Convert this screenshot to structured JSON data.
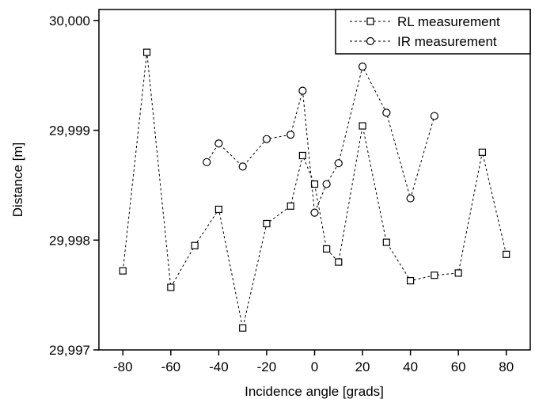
{
  "chart_data": {
    "type": "line",
    "xlabel": "Incidence angle [grads]",
    "ylabel": "Distance [m]",
    "xlim": [
      -90,
      90
    ],
    "ylim": [
      29.997,
      30.0001
    ],
    "x_ticks": [
      -80,
      -60,
      -40,
      -20,
      0,
      20,
      40,
      60,
      80
    ],
    "x_tick_labels": [
      "-80",
      "-60",
      "-40",
      "-20",
      "0",
      "20",
      "40",
      "60",
      "80"
    ],
    "y_ticks": [
      29.997,
      29.998,
      29.999,
      30.0
    ],
    "y_tick_labels": [
      "29,997",
      "29,998",
      "29,999",
      "30,000"
    ],
    "grid": false,
    "legend_position": "top-right",
    "series": [
      {
        "name": "RL measurement",
        "marker": "square",
        "line_style": "dashed",
        "color": "#000000",
        "x": [
          -80,
          -70,
          -60,
          -50,
          -40,
          -30,
          -20,
          -10,
          -5,
          0,
          5,
          10,
          20,
          30,
          40,
          50,
          60,
          70,
          80
        ],
        "y": [
          29.99772,
          29.99971,
          29.99757,
          29.99795,
          29.99828,
          29.9972,
          29.99815,
          29.99831,
          29.99877,
          29.99851,
          29.99792,
          29.9978,
          29.99904,
          29.99798,
          29.99763,
          29.99768,
          29.9977,
          29.9988,
          29.99787
        ]
      },
      {
        "name": "IR measurement",
        "marker": "circle",
        "line_style": "dashed",
        "color": "#000000",
        "x": [
          -45,
          -40,
          -30,
          -20,
          -10,
          -5,
          0,
          5,
          10,
          20,
          30,
          40,
          50
        ],
        "y": [
          29.99871,
          29.99888,
          29.99867,
          29.99892,
          29.99896,
          29.99936,
          29.99825,
          29.99851,
          29.9987,
          29.99958,
          29.99916,
          29.99838,
          29.99913
        ]
      }
    ]
  }
}
